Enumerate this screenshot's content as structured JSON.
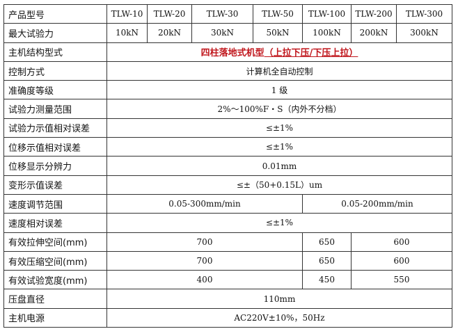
{
  "header": {
    "label": "产品型号",
    "models": [
      "TLW-10",
      "TLW-20",
      "TLW-30",
      "TLW-50",
      "TLW-100",
      "TLW-200",
      "TLW-300"
    ]
  },
  "max_force": {
    "label": "最大试验力",
    "values": [
      "10kN",
      "20kN",
      "30kN",
      "50kN",
      "100kN",
      "200kN",
      "300kN"
    ]
  },
  "structure": {
    "label": "主机结构型式",
    "value_main": "四柱落地式机型",
    "value_paren": "（上拉下压/下压上拉）",
    "color": "#c0161c"
  },
  "full_rows": [
    {
      "label": "控制方式",
      "value": "计算机全自动控制"
    },
    {
      "label": "准确度等级",
      "value": "1 级"
    },
    {
      "label": "试验力测量范围",
      "value": "2%～100%F・S（内外不分档）"
    },
    {
      "label": "试验力示值相对误差",
      "value": "≤±1%"
    },
    {
      "label": "位移示值相对误差",
      "value": "≤±1%"
    },
    {
      "label": "位移显示分辨力",
      "value": "0.01mm"
    },
    {
      "label": "变形示值误差",
      "value": "≤±（50+0.15L）um"
    }
  ],
  "speed_range": {
    "label": "速度调节范围",
    "values": [
      "0.05-300mm/min",
      "0.05-200mm/min"
    ]
  },
  "speed_error": {
    "label": "速度相对误差",
    "value": "≤±1%"
  },
  "space_rows": [
    {
      "label": "有效拉伸空间(mm)",
      "values": [
        "700",
        "650",
        "600"
      ]
    },
    {
      "label": "有效压缩空间(mm)",
      "values": [
        "700",
        "650",
        "600"
      ]
    },
    {
      "label": "有效试验宽度(mm)",
      "values": [
        "400",
        "450",
        "550"
      ]
    }
  ],
  "tail_rows": [
    {
      "label": "压盘直径",
      "value": "110mm"
    },
    {
      "label": "主机电源",
      "value": "AC220V±10%，50Hz"
    }
  ]
}
